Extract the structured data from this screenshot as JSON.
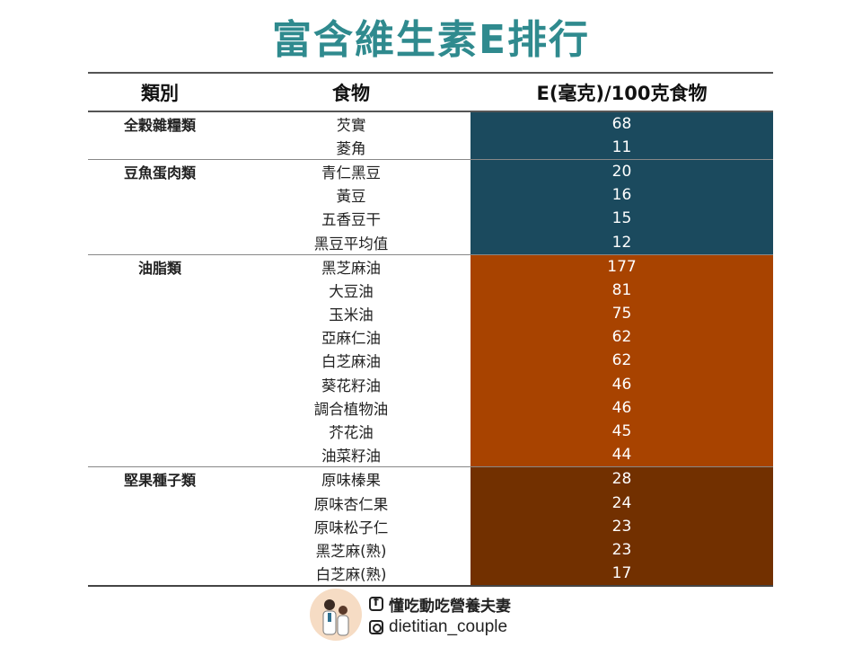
{
  "title": "富含維生素E排行",
  "header": {
    "category": "類別",
    "food": "食物",
    "value": "E(毫克)/100克食物"
  },
  "colors": {
    "title": "#2f8a8e",
    "grains_beans": "#1b4a5e",
    "oils": "#a84300",
    "nuts": "#723000"
  },
  "groups": [
    {
      "category": "全穀雜糧類",
      "color": "#1b4a5e",
      "items": [
        {
          "food": "芡實",
          "value": "68"
        },
        {
          "food": "菱角",
          "value": "11"
        }
      ]
    },
    {
      "category": "豆魚蛋肉類",
      "color": "#1b4a5e",
      "items": [
        {
          "food": "青仁黑豆",
          "value": "20"
        },
        {
          "food": "黃豆",
          "value": "16"
        },
        {
          "food": "五香豆干",
          "value": "15"
        },
        {
          "food": "黑豆平均值",
          "value": "12"
        }
      ]
    },
    {
      "category": "油脂類",
      "color": "#a84300",
      "items": [
        {
          "food": "黑芝麻油",
          "value": "177"
        },
        {
          "food": "大豆油",
          "value": "81"
        },
        {
          "food": "玉米油",
          "value": "75"
        },
        {
          "food": "亞麻仁油",
          "value": "62"
        },
        {
          "food": "白芝麻油",
          "value": "62"
        },
        {
          "food": "葵花籽油",
          "value": "46"
        },
        {
          "food": "調合植物油",
          "value": "46"
        },
        {
          "food": "芥花油",
          "value": "45"
        },
        {
          "food": "油菜籽油",
          "value": "44"
        }
      ]
    },
    {
      "category": "堅果種子類",
      "color": "#723000",
      "items": [
        {
          "food": "原味榛果",
          "value": "28"
        },
        {
          "food": "原味杏仁果",
          "value": "24"
        },
        {
          "food": "原味松子仁",
          "value": "23"
        },
        {
          "food": "黑芝麻(熟)",
          "value": "23"
        },
        {
          "food": "白芝麻(熟)",
          "value": "17"
        }
      ]
    }
  ],
  "footer": {
    "facebook": "懂吃動吃營養夫妻",
    "instagram": "dietitian_couple"
  }
}
